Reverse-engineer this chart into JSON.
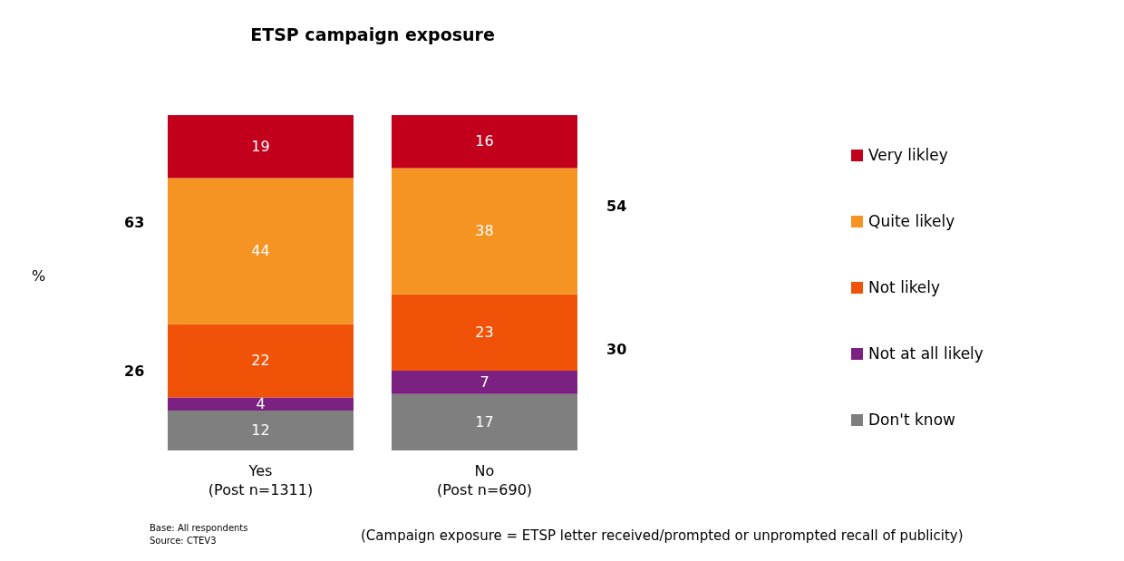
{
  "chart_data": {
    "type": "bar",
    "title": "ETSP campaign exposure",
    "categories": [
      "Yes\n(Post n=1311)",
      "No\n(Post n=690)"
    ],
    "stacked": true,
    "data_labels": true,
    "legend": "right",
    "series": [
      {
        "name": "Don't know",
        "color": "#7f7f7f",
        "values": [
          12,
          17
        ]
      },
      {
        "name": "Not at all likely",
        "color": "#7b2182",
        "values": [
          4,
          7
        ]
      },
      {
        "name": "Not likely",
        "color": "#f05308",
        "values": [
          22,
          23
        ]
      },
      {
        "name": "Quite likely",
        "color": "#f59422",
        "values": [
          44,
          38
        ]
      },
      {
        "name": "Very likley",
        "color": "#c2001b",
        "values": [
          19,
          16
        ]
      }
    ],
    "annotations": [
      "63",
      "26",
      "54",
      "30",
      "%",
      "Base: All respondents",
      "Source: CTEV3",
      "(Campaign exposure = ETSP letter received/prompted or unprompted recall of publicity)"
    ]
  }
}
